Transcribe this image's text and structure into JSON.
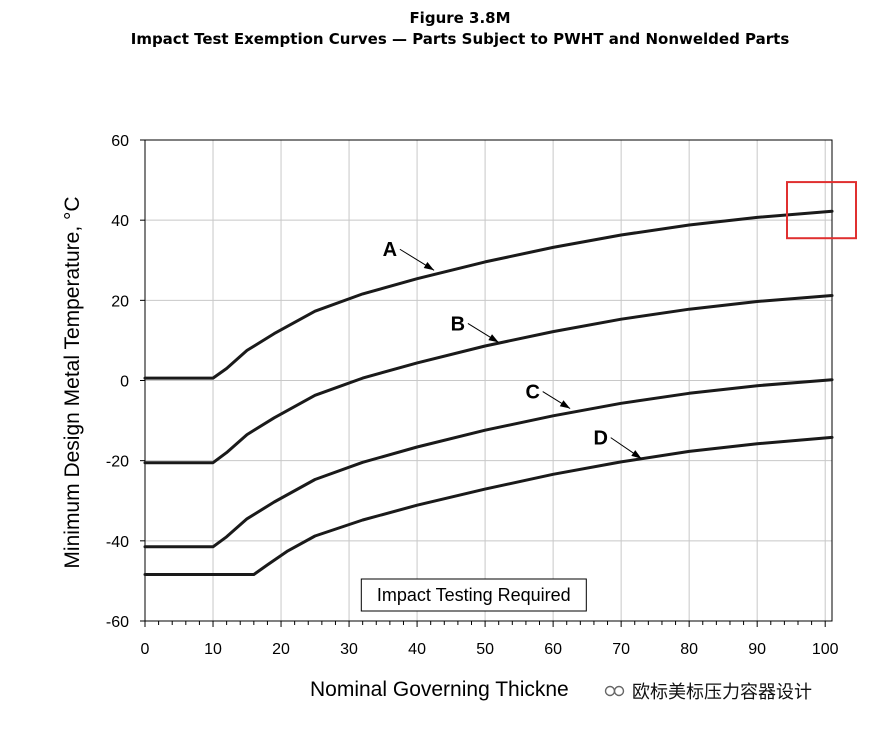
{
  "figure_number": "Figure 3.8M",
  "figure_title": "Impact Test Exemption Curves — Parts Subject to PWHT and Nonwelded Parts",
  "watermark_text": "欧标美标压力容器设计",
  "highlight_color": "#e03030",
  "chart_data": {
    "type": "line",
    "title": "Impact Test Exemption Curves — Parts Subject to PWHT and Nonwelded Parts",
    "xlabel": "Nominal Governing Thickness, mm",
    "xlabel_visible": "Nominal Governing Thickne",
    "ylabel": "Minimum Design Metal Temperature, °C",
    "xlim": [
      0,
      101
    ],
    "ylim": [
      -60,
      60
    ],
    "x_ticks": [
      0,
      10,
      20,
      30,
      40,
      50,
      60,
      70,
      80,
      90,
      100
    ],
    "y_ticks": [
      60,
      40,
      20,
      0,
      -20,
      -40,
      -60
    ],
    "grid": true,
    "region_annotation": "Impact Testing Required",
    "highlight_region": {
      "x": [
        95,
        101
      ],
      "y": [
        35,
        50
      ]
    },
    "series": [
      {
        "name": "A",
        "label_at": [
          36,
          31
        ],
        "arrow_to": [
          42.5,
          27.5
        ],
        "x": [
          0,
          10,
          12,
          15,
          19,
          25,
          32,
          40,
          50,
          60,
          70,
          80,
          90,
          101
        ],
        "y": [
          0.6,
          0.6,
          3,
          7.5,
          11.7,
          17.3,
          21.6,
          25.4,
          29.6,
          33.2,
          36.3,
          38.8,
          40.7,
          42.2
        ]
      },
      {
        "name": "B",
        "label_at": [
          46,
          12.5
        ],
        "arrow_to": [
          52,
          9.5
        ],
        "x": [
          0,
          10,
          12,
          15,
          19,
          25,
          32,
          40,
          50,
          60,
          70,
          80,
          90,
          101
        ],
        "y": [
          -20.5,
          -20.5,
          -18,
          -13.5,
          -9.3,
          -3.7,
          0.6,
          4.4,
          8.6,
          12.2,
          15.3,
          17.8,
          19.7,
          21.2
        ]
      },
      {
        "name": "C",
        "label_at": [
          57,
          -4.5
        ],
        "arrow_to": [
          62.5,
          -7
        ],
        "x": [
          0,
          10,
          12,
          15,
          19,
          25,
          32,
          40,
          50,
          60,
          70,
          80,
          90,
          101
        ],
        "y": [
          -41.5,
          -41.5,
          -39,
          -34.5,
          -30.3,
          -24.7,
          -20.4,
          -16.6,
          -12.4,
          -8.8,
          -5.7,
          -3.2,
          -1.3,
          0.2
        ]
      },
      {
        "name": "D",
        "label_at": [
          67,
          -16
        ],
        "arrow_to": [
          73,
          -19.5
        ],
        "x": [
          0,
          16,
          18,
          21,
          25,
          32,
          40,
          50,
          60,
          70,
          80,
          90,
          101
        ],
        "y": [
          -48.4,
          -48.4,
          -46,
          -42.5,
          -38.8,
          -34.8,
          -31.1,
          -27.1,
          -23.4,
          -20.3,
          -17.7,
          -15.8,
          -14.2
        ]
      }
    ]
  }
}
